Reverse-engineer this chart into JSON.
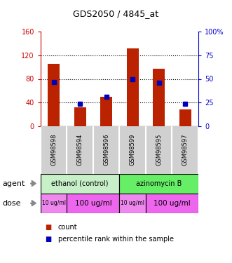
{
  "title": "GDS2050 / 4845_at",
  "samples": [
    "GSM98598",
    "GSM98594",
    "GSM98596",
    "GSM98599",
    "GSM98595",
    "GSM98597"
  ],
  "counts": [
    105,
    32,
    50,
    132,
    97,
    29
  ],
  "percentiles": [
    47,
    24,
    31,
    50,
    46,
    24
  ],
  "ylim_left": [
    0,
    160
  ],
  "ylim_right": [
    0,
    100
  ],
  "yticks_left": [
    0,
    40,
    80,
    120,
    160
  ],
  "yticks_right": [
    0,
    25,
    50,
    75,
    100
  ],
  "ytick_labels_right": [
    "0",
    "25",
    "50",
    "75",
    "100%"
  ],
  "bar_color": "#bb2200",
  "dot_color": "#0000bb",
  "agent_groups": [
    {
      "label": "ethanol (control)",
      "span": [
        0,
        3
      ],
      "color": "#c8f0c8"
    },
    {
      "label": "azinomycin B",
      "span": [
        3,
        6
      ],
      "color": "#66ee66"
    }
  ],
  "dose_groups": [
    {
      "label": "10 ug/ml",
      "span": [
        0,
        1
      ],
      "color": "#ee88ee",
      "fontsize": 5.5
    },
    {
      "label": "100 ug/ml",
      "span": [
        1,
        3
      ],
      "color": "#ee66ee",
      "fontsize": 7.5
    },
    {
      "label": "10 ug/ml",
      "span": [
        3,
        4
      ],
      "color": "#ee88ee",
      "fontsize": 5.5
    },
    {
      "label": "100 ug/ml",
      "span": [
        4,
        6
      ],
      "color": "#ee66ee",
      "fontsize": 7.5
    }
  ],
  "sample_bg_color": "#d0d0d0",
  "legend_red_label": "count",
  "legend_blue_label": "percentile rank within the sample",
  "grid_color": "black",
  "left_axis_color": "#cc0000",
  "right_axis_color": "#0000cc",
  "grid_yticks": [
    40,
    80,
    120
  ]
}
